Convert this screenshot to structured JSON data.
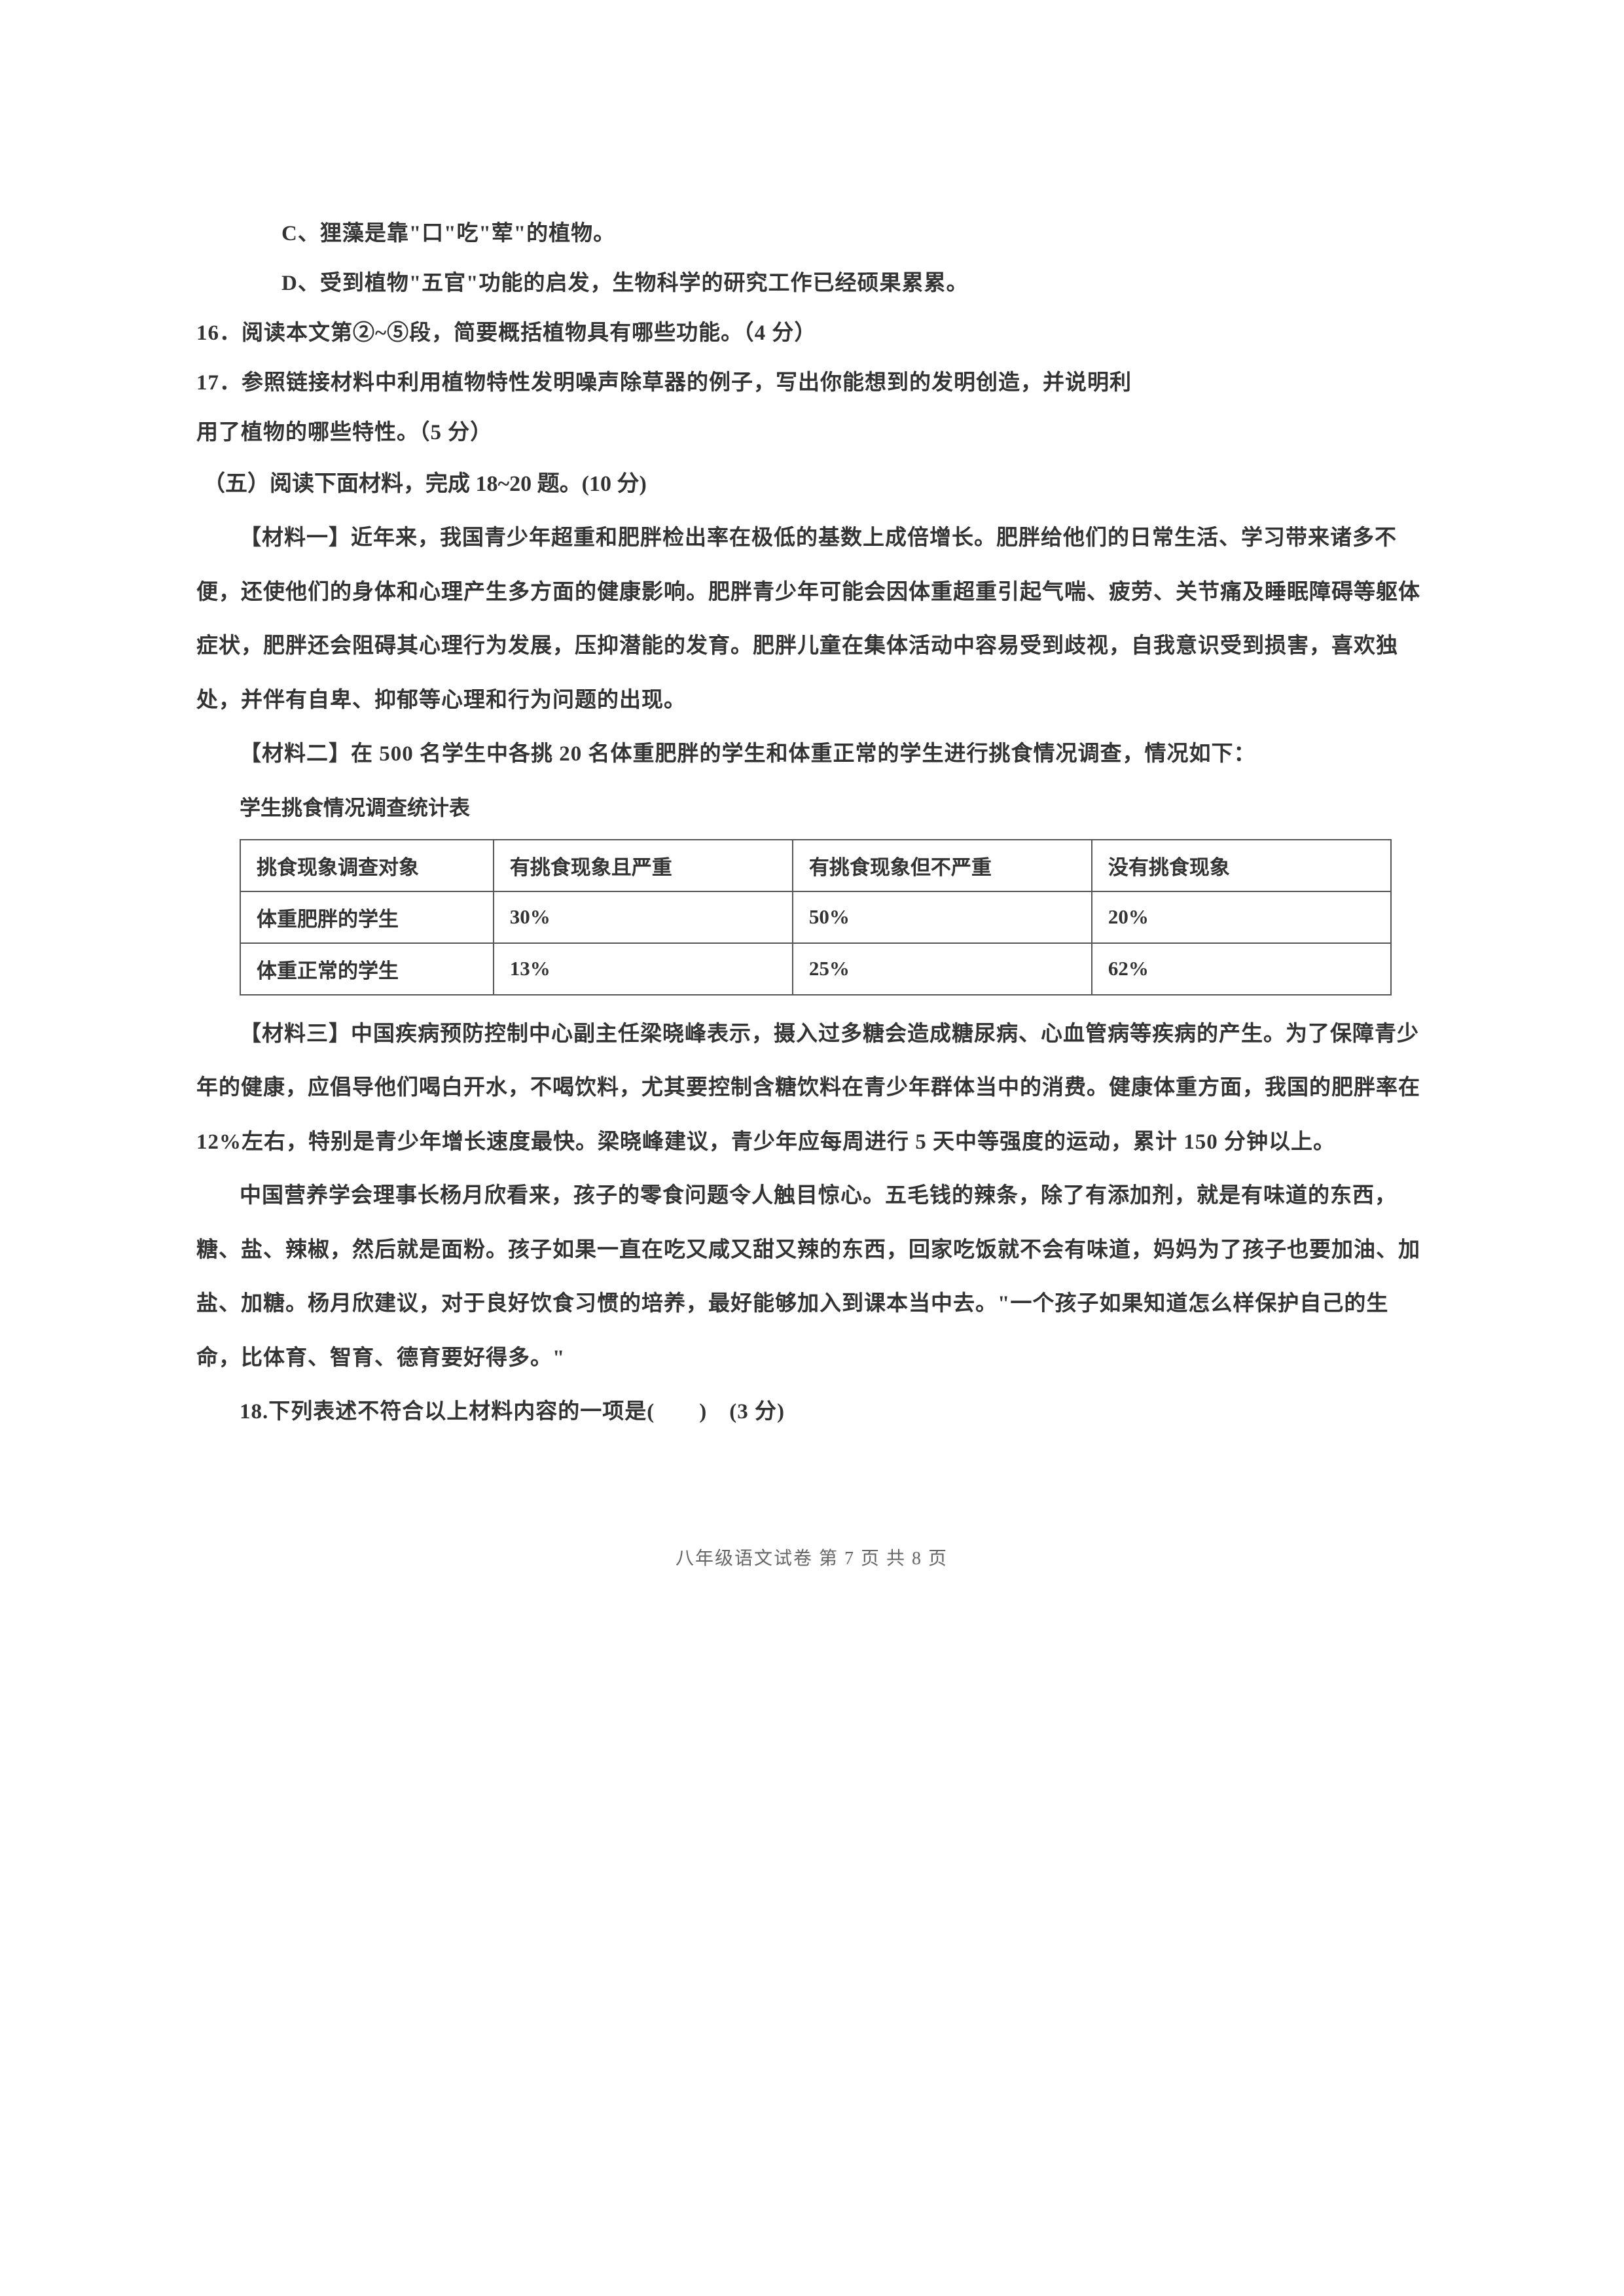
{
  "lines": {
    "optC": "C、狸藻是靠\"口\"吃\"荤\"的植物。",
    "optD": "D、受到植物\"五官\"功能的启发，生物科学的研究工作已经硕果累累。",
    "q16": "16．阅读本文第②~⑤段，简要概括植物具有哪些功能。（4 分）",
    "q17a": "17．参照链接材料中利用植物特性发明噪声除草器的例子，写出你能想到的发明创造，并说明利",
    "q17b": "用了植物的哪些特性。（5 分）"
  },
  "section5_head": "（五）阅读下面材料，完成 18~20 题。(10 分)",
  "mat1": "【材料一】近年来，我国青少年超重和肥胖检出率在极低的基数上成倍增长。肥胖给他们的日常生活、学习带来诸多不便，还使他们的身体和心理产生多方面的健康影响。肥胖青少年可能会因体重超重引起气喘、疲劳、关节痛及睡眠障碍等躯体症状，肥胖还会阻碍其心理行为发展，压抑潜能的发育。肥胖儿童在集体活动中容易受到歧视，自我意识受到损害，喜欢独处，并伴有自卑、抑郁等心理和行为问题的出现。",
  "mat2_intro": "【材料二】在 500 名学生中各挑 20 名体重肥胖的学生和体重正常的学生进行挑食情况调查，情况如下：",
  "table": {
    "title": "学生挑食情况调查统计表",
    "headers": [
      "挑食现象调查对象",
      "有挑食现象且严重",
      "有挑食现象但不严重",
      "没有挑食现象"
    ],
    "rows": [
      [
        "体重肥胖的学生",
        "30%",
        "50%",
        "20%"
      ],
      [
        "体重正常的学生",
        "13%",
        "25%",
        "62%"
      ]
    ]
  },
  "mat3a": "【材料三】中国疾病预防控制中心副主任梁晓峰表示，摄入过多糖会造成糖尿病、心血管病等疾病的产生。为了保障青少年的健康，应倡导他们喝白开水，不喝饮料，尤其要控制含糖饮料在青少年群体当中的消费。健康体重方面，我国的肥胖率在 12%左右，特别是青少年增长速度最快。梁晓峰建议，青少年应每周进行 5 天中等强度的运动，累计 150 分钟以上。",
  "mat3b": "中国营养学会理事长杨月欣看来，孩子的零食问题令人触目惊心。五毛钱的辣条，除了有添加剂，就是有味道的东西，糖、盐、辣椒，然后就是面粉。孩子如果一直在吃又咸又甜又辣的东西，回家吃饭就不会有味道，妈妈为了孩子也要加油、加盐、加糖。杨月欣建议，对于良好饮食习惯的培养，最好能够加入到课本当中去。\"一个孩子如果知道怎么样保护自己的生命，比体育、智育、德育要好得多。\"",
  "q18": "18.下列表述不符合以上材料内容的一项是(　　)　(3 分)",
  "footer": "八年级语文试卷    第 7 页      共 8 页"
}
